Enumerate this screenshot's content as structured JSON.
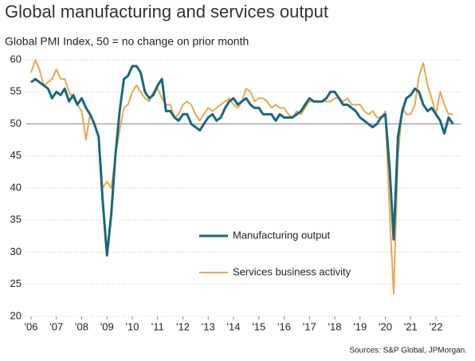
{
  "chart_data": {
    "type": "line",
    "title": "Global manufacturing and services output",
    "subtitle": "Global PMI Index, 50 = no change on prior month",
    "source": "Sources: S&P Global, JPMorgan.",
    "x": [
      2006,
      2006.17,
      2006.33,
      2006.5,
      2006.67,
      2006.83,
      2007,
      2007.17,
      2007.33,
      2007.5,
      2007.67,
      2007.83,
      2008,
      2008.17,
      2008.33,
      2008.5,
      2008.67,
      2008.83,
      2009,
      2009.17,
      2009.33,
      2009.5,
      2009.67,
      2009.83,
      2010,
      2010.17,
      2010.33,
      2010.5,
      2010.67,
      2010.83,
      2011,
      2011.17,
      2011.33,
      2011.5,
      2011.67,
      2011.83,
      2012,
      2012.17,
      2012.33,
      2012.5,
      2012.67,
      2012.83,
      2013,
      2013.17,
      2013.33,
      2013.5,
      2013.67,
      2013.83,
      2014,
      2014.17,
      2014.33,
      2014.5,
      2014.67,
      2014.83,
      2015,
      2015.17,
      2015.33,
      2015.5,
      2015.67,
      2015.83,
      2016,
      2016.17,
      2016.33,
      2016.5,
      2016.67,
      2016.83,
      2017,
      2017.17,
      2017.33,
      2017.5,
      2017.67,
      2017.83,
      2018,
      2018.17,
      2018.33,
      2018.5,
      2018.67,
      2018.83,
      2019,
      2019.17,
      2019.33,
      2019.5,
      2019.67,
      2019.83,
      2020,
      2020.17,
      2020.33,
      2020.5,
      2020.67,
      2020.83,
      2021,
      2021.17,
      2021.33,
      2021.5,
      2021.67,
      2021.83,
      2022,
      2022.17,
      2022.33,
      2022.5,
      2022.67
    ],
    "series": [
      {
        "name": "Manufacturing output",
        "color": "#17687f",
        "values": [
          56.5,
          57,
          56.5,
          56,
          55.5,
          54,
          55,
          54.5,
          55.5,
          53.5,
          54.5,
          53,
          54,
          52.5,
          51.5,
          50,
          48,
          38,
          29.5,
          36,
          45,
          52,
          57,
          57.5,
          59,
          59,
          58,
          55,
          54,
          54.5,
          56,
          57,
          52,
          52,
          51,
          50.5,
          51.5,
          51.5,
          50,
          49.5,
          49,
          50,
          51,
          51.5,
          50.5,
          51,
          52.5,
          53.5,
          54,
          53,
          53.5,
          54,
          53,
          52.5,
          52.5,
          51.5,
          51.5,
          51.5,
          50.5,
          51.5,
          51,
          51,
          51,
          51.5,
          52,
          53,
          54,
          53.5,
          53.5,
          53.5,
          54,
          55,
          55,
          54,
          53,
          53,
          52.5,
          52,
          51,
          50.5,
          50,
          49.5,
          50,
          51,
          51.5,
          43,
          32,
          48,
          52,
          54,
          54.5,
          55.5,
          55,
          53,
          52,
          52.5,
          51.5,
          50.5,
          48.5,
          51,
          50
        ]
      },
      {
        "name": "Services business activity",
        "color": "#e9a84b",
        "values": [
          58,
          60,
          58.5,
          56,
          56.5,
          57,
          58.5,
          57,
          57,
          55,
          54,
          53,
          52,
          47.5,
          51.5,
          50,
          48,
          40,
          41,
          40,
          45,
          49,
          52.5,
          53,
          55,
          56,
          55,
          54,
          53.5,
          55,
          55.5,
          54,
          53,
          53,
          51,
          51.5,
          53,
          53.5,
          53,
          51.5,
          50.5,
          51.5,
          52.5,
          52,
          52.5,
          53,
          53.5,
          54,
          53,
          52.5,
          53.5,
          55.5,
          55,
          53.5,
          54,
          54,
          53.5,
          52.5,
          53,
          52.5,
          52.5,
          51.5,
          51,
          52,
          51.5,
          52.5,
          53.5,
          53.5,
          53.5,
          53.5,
          53.5,
          53.5,
          54,
          54,
          53.5,
          54,
          53,
          53,
          53,
          52,
          51.5,
          52,
          51,
          51,
          52,
          36,
          23.5,
          45,
          52.5,
          51.5,
          51.5,
          53,
          57.5,
          59.5,
          56,
          54,
          51.5,
          55,
          53,
          51.5,
          51.5
        ]
      }
    ],
    "xlim": [
      2006,
      2023
    ],
    "xticks": [
      {
        "value": 2006,
        "label": "'06"
      },
      {
        "value": 2007,
        "label": "'07"
      },
      {
        "value": 2008,
        "label": "'08"
      },
      {
        "value": 2009,
        "label": "'09"
      },
      {
        "value": 2010,
        "label": "'10"
      },
      {
        "value": 2011,
        "label": "'11"
      },
      {
        "value": 2012,
        "label": "'12"
      },
      {
        "value": 2013,
        "label": "'13"
      },
      {
        "value": 2014,
        "label": "'14"
      },
      {
        "value": 2015,
        "label": "'15"
      },
      {
        "value": 2016,
        "label": "'16"
      },
      {
        "value": 2017,
        "label": "'17"
      },
      {
        "value": 2018,
        "label": "'18"
      },
      {
        "value": 2019,
        "label": "'19"
      },
      {
        "value": 2020,
        "label": "'20"
      },
      {
        "value": 2021,
        "label": "'21"
      },
      {
        "value": 2022,
        "label": "'22"
      }
    ],
    "ylim": [
      20,
      60
    ],
    "yticks": [
      20,
      25,
      30,
      35,
      40,
      45,
      50,
      55,
      60
    ],
    "reference_line": 50,
    "grid": true
  }
}
